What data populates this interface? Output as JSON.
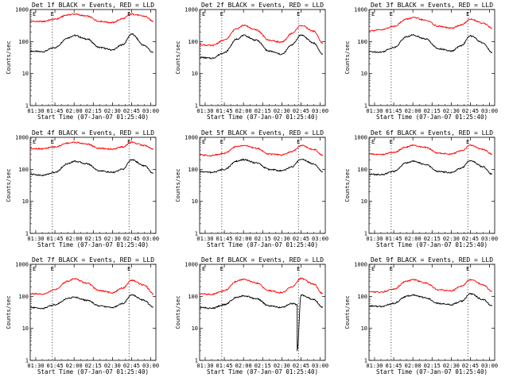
{
  "figure": {
    "background": "#ffffff",
    "colors": {
      "events": "#000000",
      "lld": "#ff0000",
      "axes": "#000000"
    }
  },
  "chart_data": [
    {
      "type": "line",
      "title": "Det 1f BLACK = Events, RED = LLD",
      "xlabel": "Start Time (07-Jan-07 01:25:40)",
      "ylabel": "Counts/sec",
      "marker": "E",
      "yscale": "log",
      "ylim": [
        1,
        1000
      ],
      "yticks": [
        "1",
        "10",
        "100",
        "1000"
      ],
      "xticks": [
        "01:30",
        "01:45",
        "02:00",
        "02:15",
        "02:30",
        "02:45",
        "03:00"
      ],
      "xlim": [
        "01:25:40",
        "03:04:00"
      ],
      "markers_x": [
        "01:43",
        "02:43"
      ],
      "series": [
        {
          "name": "Events",
          "x": [
            "01:26",
            "01:35",
            "01:45",
            "01:55",
            "02:00",
            "02:10",
            "02:20",
            "02:30",
            "02:38",
            "02:45",
            "02:55",
            "03:02"
          ],
          "values": [
            50,
            48,
            65,
            130,
            155,
            120,
            65,
            55,
            80,
            170,
            75,
            45
          ]
        },
        {
          "name": "LLD",
          "x": [
            "01:26",
            "01:35",
            "01:45",
            "01:55",
            "02:00",
            "02:10",
            "02:20",
            "02:30",
            "02:38",
            "02:45",
            "02:55",
            "03:02"
          ],
          "values": [
            430,
            420,
            500,
            680,
            720,
            620,
            430,
            390,
            520,
            720,
            620,
            430
          ]
        }
      ]
    },
    {
      "type": "line",
      "title": "Det 2f BLACK = Events, RED = LLD",
      "xlabel": "Start Time (07-Jan-07 01:25:40)",
      "ylabel": "Counts/sec",
      "marker": "E",
      "yscale": "log",
      "ylim": [
        1,
        1000
      ],
      "yticks": [
        "1",
        "10",
        "100",
        "1000"
      ],
      "xticks": [
        "01:30",
        "01:45",
        "02:00",
        "02:15",
        "02:30",
        "02:45",
        "03:00"
      ],
      "xlim": [
        "01:25:40",
        "03:04:00"
      ],
      "markers_x": [
        "01:43",
        "02:43"
      ],
      "series": [
        {
          "name": "Events",
          "x": [
            "01:26",
            "01:35",
            "01:45",
            "01:55",
            "02:00",
            "02:10",
            "02:20",
            "02:30",
            "02:38",
            "02:45",
            "02:55",
            "03:02"
          ],
          "values": [
            32,
            30,
            45,
            120,
            155,
            110,
            50,
            40,
            80,
            160,
            90,
            40
          ]
        },
        {
          "name": "LLD",
          "x": [
            "01:26",
            "01:35",
            "01:45",
            "01:55",
            "02:00",
            "02:10",
            "02:20",
            "02:30",
            "02:38",
            "02:45",
            "02:55",
            "03:02"
          ],
          "values": [
            80,
            75,
            110,
            260,
            320,
            230,
            110,
            95,
            180,
            320,
            210,
            90
          ]
        }
      ]
    },
    {
      "type": "line",
      "title": "Det 3f BLACK = Events, RED = LLD",
      "xlabel": "Start Time (07-Jan-07 01:25:40)",
      "ylabel": "Counts/sec",
      "marker": "E",
      "yscale": "log",
      "ylim": [
        1,
        1000
      ],
      "yticks": [
        "1",
        "10",
        "100",
        "1000"
      ],
      "xticks": [
        "01:30",
        "01:45",
        "02:00",
        "02:15",
        "02:30",
        "02:45",
        "03:00"
      ],
      "xlim": [
        "01:25:40",
        "03:04:00"
      ],
      "markers_x": [
        "01:43",
        "02:43"
      ],
      "series": [
        {
          "name": "Events",
          "x": [
            "01:26",
            "01:35",
            "01:45",
            "01:55",
            "02:00",
            "02:10",
            "02:20",
            "02:30",
            "02:38",
            "02:45",
            "02:55",
            "03:02"
          ],
          "values": [
            48,
            47,
            65,
            140,
            160,
            120,
            60,
            50,
            75,
            150,
            90,
            45
          ]
        },
        {
          "name": "LLD",
          "x": [
            "01:26",
            "01:35",
            "01:45",
            "01:55",
            "02:00",
            "02:10",
            "02:20",
            "02:30",
            "02:38",
            "02:45",
            "02:55",
            "03:02"
          ],
          "values": [
            220,
            230,
            300,
            500,
            560,
            460,
            300,
            260,
            330,
            500,
            380,
            260
          ]
        }
      ]
    },
    {
      "type": "line",
      "title": "Det 4f BLACK = Events, RED = LLD",
      "xlabel": "Start Time (07-Jan-07 01:25:40)",
      "ylabel": "Counts/sec",
      "marker": "E",
      "yscale": "log",
      "ylim": [
        1,
        1000
      ],
      "yticks": [
        "1",
        "10",
        "100",
        "1000"
      ],
      "xticks": [
        "01:30",
        "01:45",
        "02:00",
        "02:15",
        "02:30",
        "02:45",
        "03:00"
      ],
      "xlim": [
        "01:25:40",
        "03:04:00"
      ],
      "markers_x": [
        "01:43",
        "02:43"
      ],
      "series": [
        {
          "name": "Events",
          "x": [
            "01:26",
            "01:35",
            "01:45",
            "01:55",
            "02:00",
            "02:10",
            "02:20",
            "02:30",
            "02:38",
            "02:45",
            "02:55",
            "03:02"
          ],
          "values": [
            70,
            65,
            80,
            150,
            180,
            150,
            90,
            80,
            100,
            200,
            130,
            75
          ]
        },
        {
          "name": "LLD",
          "x": [
            "01:26",
            "01:35",
            "01:45",
            "01:55",
            "02:00",
            "02:10",
            "02:20",
            "02:30",
            "02:38",
            "02:45",
            "02:55",
            "03:02"
          ],
          "values": [
            450,
            440,
            500,
            660,
            700,
            620,
            450,
            430,
            500,
            700,
            560,
            430
          ]
        }
      ]
    },
    {
      "type": "line",
      "title": "Det 5f BLACK = Events, RED = LLD",
      "xlabel": "Start Time (07-Jan-07 01:25:40)",
      "ylabel": "Counts/sec",
      "marker": "E",
      "yscale": "log",
      "ylim": [
        1,
        1000
      ],
      "yticks": [
        "1",
        "10",
        "100",
        "1000"
      ],
      "xticks": [
        "01:30",
        "01:45",
        "02:00",
        "02:15",
        "02:30",
        "02:45",
        "03:00"
      ],
      "xlim": [
        "01:25:40",
        "03:04:00"
      ],
      "markers_x": [
        "01:43",
        "02:43"
      ],
      "series": [
        {
          "name": "Events",
          "x": [
            "01:26",
            "01:35",
            "01:45",
            "01:55",
            "02:00",
            "02:10",
            "02:20",
            "02:30",
            "02:38",
            "02:45",
            "02:55",
            "03:02"
          ],
          "values": [
            85,
            80,
            100,
            180,
            200,
            160,
            100,
            90,
            120,
            210,
            150,
            85
          ]
        },
        {
          "name": "LLD",
          "x": [
            "01:26",
            "01:35",
            "01:45",
            "01:55",
            "02:00",
            "02:10",
            "02:20",
            "02:30",
            "02:38",
            "02:45",
            "02:55",
            "03:02"
          ],
          "values": [
            280,
            270,
            320,
            520,
            560,
            460,
            300,
            280,
            360,
            560,
            420,
            280
          ]
        }
      ]
    },
    {
      "type": "line",
      "title": "Det 6f BLACK = Events, RED = LLD",
      "xlabel": "Start Time (07-Jan-07 01:25:40)",
      "ylabel": "Counts/sec",
      "marker": "E",
      "yscale": "log",
      "ylim": [
        1,
        1000
      ],
      "yticks": [
        "1",
        "10",
        "100",
        "1000"
      ],
      "xticks": [
        "01:30",
        "01:45",
        "02:00",
        "02:15",
        "02:30",
        "02:45",
        "03:00"
      ],
      "xlim": [
        "01:25:40",
        "03:04:00"
      ],
      "markers_x": [
        "01:43",
        "02:43"
      ],
      "series": [
        {
          "name": "Events",
          "x": [
            "01:26",
            "01:35",
            "01:45",
            "01:55",
            "02:00",
            "02:10",
            "02:20",
            "02:30",
            "02:38",
            "02:45",
            "02:55",
            "03:02"
          ],
          "values": [
            70,
            68,
            85,
            160,
            180,
            140,
            85,
            80,
            110,
            190,
            120,
            70
          ]
        },
        {
          "name": "LLD",
          "x": [
            "01:26",
            "01:35",
            "01:45",
            "01:55",
            "02:00",
            "02:10",
            "02:20",
            "02:30",
            "02:38",
            "02:45",
            "02:55",
            "03:02"
          ],
          "values": [
            300,
            290,
            340,
            500,
            560,
            480,
            320,
            300,
            380,
            560,
            420,
            300
          ]
        }
      ]
    },
    {
      "type": "line",
      "title": "Det 7f BLACK = Events, RED = LLD",
      "xlabel": "Start Time (07-Jan-07 01:25:40)",
      "ylabel": "Counts/sec",
      "marker": "E",
      "yscale": "log",
      "ylim": [
        1,
        1000
      ],
      "yticks": [
        "1",
        "10",
        "100",
        "1000"
      ],
      "xticks": [
        "01:30",
        "01:45",
        "02:00",
        "02:15",
        "02:30",
        "02:45",
        "03:00"
      ],
      "xlim": [
        "01:25:40",
        "03:04:00"
      ],
      "markers_x": [
        "01:43",
        "02:43"
      ],
      "series": [
        {
          "name": "Events",
          "x": [
            "01:26",
            "01:35",
            "01:45",
            "01:55",
            "02:00",
            "02:10",
            "02:20",
            "02:30",
            "02:38",
            "02:45",
            "02:55",
            "03:02"
          ],
          "values": [
            45,
            42,
            55,
            85,
            95,
            75,
            50,
            45,
            60,
            110,
            75,
            45
          ]
        },
        {
          "name": "LLD",
          "x": [
            "01:26",
            "01:35",
            "01:45",
            "01:55",
            "02:00",
            "02:10",
            "02:20",
            "02:30",
            "02:38",
            "02:45",
            "02:55",
            "03:02"
          ],
          "values": [
            120,
            115,
            160,
            300,
            350,
            260,
            150,
            130,
            180,
            320,
            220,
            120
          ]
        }
      ]
    },
    {
      "type": "line",
      "title": "Det 8f BLACK = Events, RED = LLD",
      "xlabel": "Start Time (07-Jan-07 01:25:40)",
      "ylabel": "Counts/sec",
      "marker": "E",
      "yscale": "log",
      "ylim": [
        1,
        1000
      ],
      "yticks": [
        "1",
        "10",
        "100",
        "1000"
      ],
      "xticks": [
        "01:30",
        "01:45",
        "02:00",
        "02:15",
        "02:30",
        "02:45",
        "03:00"
      ],
      "xlim": [
        "01:25:40",
        "03:04:00"
      ],
      "markers_x": [
        "01:43",
        "02:43"
      ],
      "series": [
        {
          "name": "Events",
          "x": [
            "01:26",
            "01:35",
            "01:45",
            "01:55",
            "02:00",
            "02:10",
            "02:20",
            "02:30",
            "02:38",
            "02:42",
            "02:42",
            "02:45",
            "02:55",
            "03:02"
          ],
          "values": [
            45,
            42,
            55,
            95,
            105,
            85,
            50,
            45,
            60,
            55,
            2,
            110,
            80,
            45
          ]
        },
        {
          "name": "LLD",
          "x": [
            "01:26",
            "01:35",
            "01:45",
            "01:55",
            "02:00",
            "02:10",
            "02:20",
            "02:30",
            "02:38",
            "02:45",
            "02:55",
            "03:02"
          ],
          "values": [
            120,
            115,
            150,
            300,
            340,
            260,
            150,
            130,
            200,
            360,
            240,
            120
          ]
        }
      ]
    },
    {
      "type": "line",
      "title": "Det 9f BLACK = Events, RED = LLD",
      "xlabel": "Start Time (07-Jan-07 01:25:40)",
      "ylabel": "Counts/sec",
      "marker": "E",
      "yscale": "log",
      "ylim": [
        1,
        1000
      ],
      "yticks": [
        "1",
        "10",
        "100",
        "1000"
      ],
      "xticks": [
        "01:30",
        "01:45",
        "02:00",
        "02:15",
        "02:30",
        "02:45",
        "03:00"
      ],
      "xlim": [
        "01:25:40",
        "03:04:00"
      ],
      "markers_x": [
        "01:43",
        "02:43"
      ],
      "series": [
        {
          "name": "Events",
          "x": [
            "01:26",
            "01:35",
            "01:45",
            "01:55",
            "02:00",
            "02:10",
            "02:20",
            "02:30",
            "02:38",
            "02:45",
            "02:55",
            "03:02"
          ],
          "values": [
            50,
            48,
            60,
            100,
            110,
            90,
            60,
            55,
            70,
            120,
            80,
            50
          ]
        },
        {
          "name": "LLD",
          "x": [
            "01:26",
            "01:35",
            "01:45",
            "01:55",
            "02:00",
            "02:10",
            "02:20",
            "02:30",
            "02:38",
            "02:45",
            "02:55",
            "03:02"
          ],
          "values": [
            140,
            135,
            170,
            300,
            330,
            260,
            160,
            150,
            210,
            330,
            230,
            140
          ]
        }
      ]
    }
  ]
}
